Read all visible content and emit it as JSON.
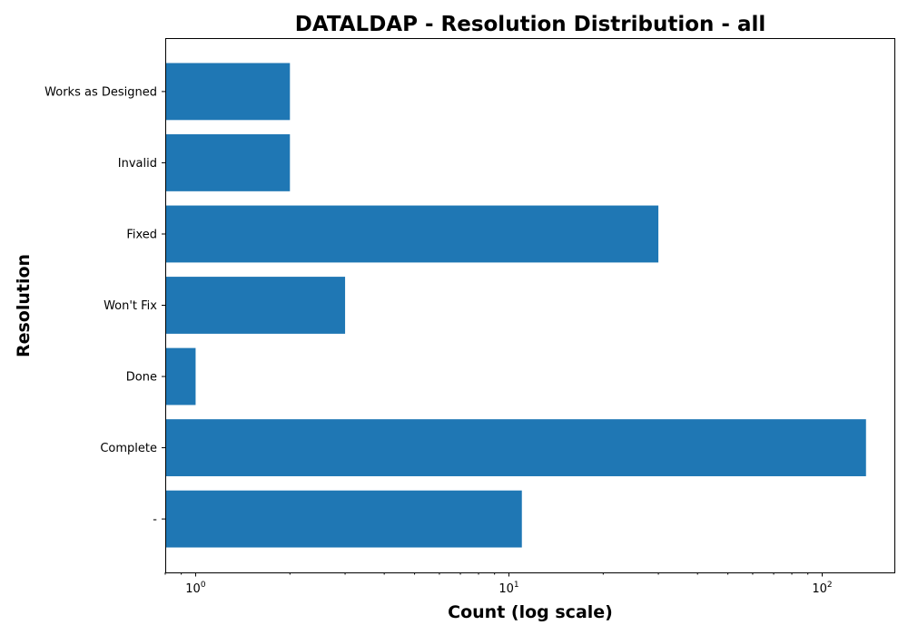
{
  "chart_data": {
    "type": "bar",
    "orientation": "horizontal",
    "title": "DATALDAP - Resolution Distribution - all",
    "xlabel": "Count (log scale)",
    "ylabel": "Resolution",
    "x_scale": "log",
    "xlim": [
      0.8,
      170
    ],
    "x_ticks": [
      {
        "value": 1,
        "base": "10",
        "exp": "0"
      },
      {
        "value": 10,
        "base": "10",
        "exp": "1"
      },
      {
        "value": 100,
        "base": "10",
        "exp": "2"
      }
    ],
    "categories": [
      "-",
      "Complete",
      "Done",
      "Won't Fix",
      "Fixed",
      "Invalid",
      "Works as Designed"
    ],
    "values": [
      11,
      138,
      1,
      3,
      30,
      2,
      2
    ],
    "bar_color": "#1f77b4",
    "grid": false
  }
}
